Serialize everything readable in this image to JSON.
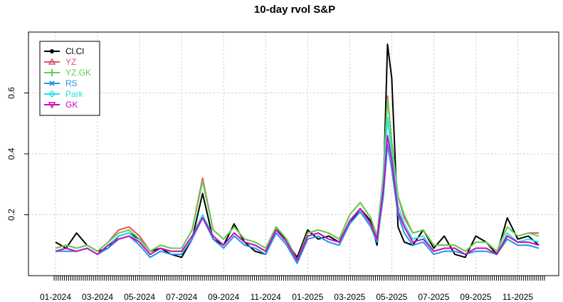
{
  "chart_data": {
    "type": "line",
    "title": "10-day rvol S&P",
    "xlabel": "",
    "ylabel": "",
    "ylim": [
      0.0,
      0.8
    ],
    "y_ticks": [
      0.2,
      0.4,
      0.6
    ],
    "y_tick_labels": [
      "0.2",
      "0.4",
      "0.6"
    ],
    "x_tick_labels": [
      "01-2024",
      "03-2024",
      "05-2024",
      "07-2024",
      "09-2024",
      "11-2024",
      "01-2025",
      "03-2025",
      "05-2025",
      "07-2025",
      "09-2025",
      "11-2025"
    ],
    "x_tick_positions": [
      0,
      2,
      4,
      6,
      8,
      10,
      12,
      14,
      16,
      18,
      20,
      22
    ],
    "x_range": [
      0,
      23.2
    ],
    "grid": true,
    "legend_position": "top-left",
    "x": [
      0,
      0.5,
      1,
      1.5,
      2,
      2.5,
      3,
      3.5,
      4,
      4.5,
      5,
      5.5,
      6,
      6.5,
      7,
      7.5,
      8,
      8.5,
      9,
      9.5,
      10,
      10.5,
      11,
      11.5,
      12,
      12.5,
      13,
      13.5,
      14,
      14.5,
      15,
      15.3,
      15.6,
      15.8,
      16,
      16.3,
      16.6,
      17,
      17.5,
      18,
      18.5,
      19,
      19.5,
      20,
      20.5,
      21,
      21.5,
      22,
      22.5,
      23
    ],
    "series": [
      {
        "name": "Cl.Cl",
        "color": "#000000",
        "marker": "circle",
        "values": [
          0.11,
          0.09,
          0.14,
          0.1,
          0.08,
          0.09,
          0.13,
          0.14,
          0.12,
          0.08,
          0.09,
          0.07,
          0.06,
          0.12,
          0.27,
          0.12,
          0.1,
          0.17,
          0.11,
          0.08,
          0.07,
          0.16,
          0.11,
          0.06,
          0.15,
          0.12,
          0.13,
          0.11,
          0.17,
          0.22,
          0.18,
          0.1,
          0.28,
          0.76,
          0.65,
          0.16,
          0.11,
          0.1,
          0.15,
          0.09,
          0.13,
          0.07,
          0.06,
          0.13,
          0.11,
          0.07,
          0.19,
          0.12,
          0.13,
          0.1
        ]
      },
      {
        "name": "YZ",
        "color": "#df536b",
        "marker": "triangle",
        "values": [
          0.09,
          0.1,
          0.09,
          0.1,
          0.08,
          0.11,
          0.15,
          0.16,
          0.13,
          0.08,
          0.1,
          0.09,
          0.09,
          0.15,
          0.32,
          0.15,
          0.12,
          0.16,
          0.12,
          0.11,
          0.09,
          0.16,
          0.12,
          0.05,
          0.14,
          0.15,
          0.14,
          0.12,
          0.2,
          0.24,
          0.19,
          0.13,
          0.33,
          0.59,
          0.44,
          0.26,
          0.19,
          0.14,
          0.15,
          0.1,
          0.1,
          0.1,
          0.08,
          0.11,
          0.11,
          0.08,
          0.16,
          0.13,
          0.14,
          0.14
        ]
      },
      {
        "name": "YZ.GK",
        "color": "#61d04f",
        "marker": "plus",
        "values": [
          0.09,
          0.1,
          0.09,
          0.1,
          0.08,
          0.11,
          0.14,
          0.15,
          0.12,
          0.08,
          0.1,
          0.09,
          0.09,
          0.15,
          0.31,
          0.15,
          0.12,
          0.16,
          0.12,
          0.11,
          0.09,
          0.16,
          0.12,
          0.05,
          0.14,
          0.15,
          0.14,
          0.12,
          0.2,
          0.24,
          0.19,
          0.13,
          0.33,
          0.58,
          0.44,
          0.26,
          0.2,
          0.14,
          0.15,
          0.1,
          0.1,
          0.1,
          0.08,
          0.11,
          0.11,
          0.08,
          0.16,
          0.13,
          0.14,
          0.13
        ]
      },
      {
        "name": "RS",
        "color": "#2297e6",
        "marker": "cross",
        "values": [
          0.08,
          0.08,
          0.08,
          0.09,
          0.07,
          0.09,
          0.12,
          0.13,
          0.1,
          0.06,
          0.08,
          0.07,
          0.07,
          0.12,
          0.19,
          0.12,
          0.09,
          0.13,
          0.1,
          0.09,
          0.07,
          0.14,
          0.1,
          0.04,
          0.12,
          0.13,
          0.11,
          0.1,
          0.17,
          0.21,
          0.16,
          0.11,
          0.26,
          0.43,
          0.35,
          0.2,
          0.14,
          0.1,
          0.11,
          0.07,
          0.08,
          0.08,
          0.07,
          0.08,
          0.08,
          0.07,
          0.12,
          0.1,
          0.1,
          0.09
        ]
      },
      {
        "name": "Park",
        "color": "#28e2e5",
        "marker": "diamond",
        "values": [
          0.08,
          0.09,
          0.08,
          0.09,
          0.07,
          0.1,
          0.13,
          0.14,
          0.11,
          0.07,
          0.09,
          0.08,
          0.08,
          0.13,
          0.2,
          0.13,
          0.1,
          0.14,
          0.11,
          0.1,
          0.08,
          0.15,
          0.11,
          0.05,
          0.13,
          0.14,
          0.12,
          0.11,
          0.18,
          0.22,
          0.17,
          0.12,
          0.3,
          0.52,
          0.4,
          0.23,
          0.17,
          0.12,
          0.13,
          0.08,
          0.09,
          0.09,
          0.07,
          0.09,
          0.09,
          0.07,
          0.14,
          0.11,
          0.12,
          0.11
        ]
      },
      {
        "name": "GK",
        "color": "#cd0bbc",
        "marker": "triangle-down",
        "values": [
          0.08,
          0.09,
          0.08,
          0.09,
          0.07,
          0.1,
          0.12,
          0.13,
          0.11,
          0.07,
          0.09,
          0.08,
          0.08,
          0.13,
          0.19,
          0.13,
          0.1,
          0.14,
          0.11,
          0.1,
          0.08,
          0.15,
          0.11,
          0.05,
          0.13,
          0.14,
          0.12,
          0.11,
          0.18,
          0.22,
          0.17,
          0.12,
          0.28,
          0.46,
          0.38,
          0.21,
          0.16,
          0.11,
          0.12,
          0.08,
          0.09,
          0.09,
          0.07,
          0.09,
          0.09,
          0.07,
          0.13,
          0.11,
          0.11,
          0.1
        ]
      }
    ]
  }
}
